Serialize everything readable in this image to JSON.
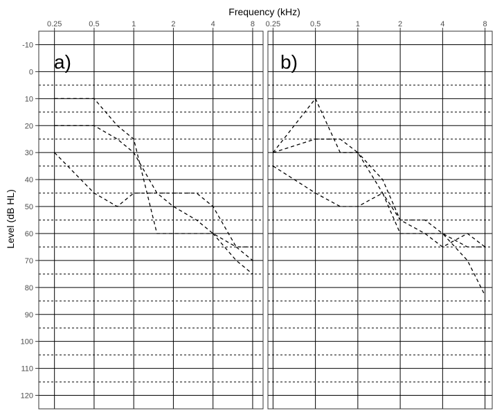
{
  "chart_data": {
    "type": "line",
    "xlabel": "Frequency (kHz)",
    "ylabel": "Level (dB HL)",
    "x_scale": "log",
    "y_reversed": true,
    "ylim": [
      -15,
      125
    ],
    "y_ticks": [
      -10,
      0,
      10,
      20,
      30,
      40,
      50,
      60,
      70,
      80,
      90,
      100,
      110,
      120
    ],
    "y_tick_labels": [
      "-10",
      "0",
      "10",
      "20",
      "30",
      "40",
      "50",
      "60",
      "70",
      "80",
      "90",
      "100",
      "110",
      "120"
    ],
    "x_tick_labels_by_value": {
      "0.25": "0.25",
      "0.5": "0.5",
      "1": "1",
      "2": "2",
      "4": "4",
      "8": "8"
    },
    "major_grid_x": [
      0.25,
      0.5,
      1,
      2,
      4,
      8
    ],
    "minor_grid_x": [
      0.75,
      1.5,
      3,
      6
    ],
    "grid": true,
    "line_color": "#000000",
    "panels": [
      {
        "label": "a)",
        "x_ticks": [
          0.25,
          0.5,
          1,
          2,
          4,
          8
        ],
        "xlim": [
          0.19,
          9.6
        ],
        "series": [
          {
            "x": [
              0.25,
              0.5,
              0.75,
              1.0,
              1.2,
              1.5,
              2,
              3,
              4,
              6,
              8
            ],
            "y": [
              30,
              45,
              50,
              45,
              45,
              45,
              45,
              45,
              50,
              65,
              65
            ]
          },
          {
            "x": [
              0.25,
              0.5,
              0.75,
              1.0,
              1.5,
              2,
              3,
              4,
              6,
              8
            ],
            "y": [
              10,
              10,
              20,
              25,
              60,
              60,
              60,
              60,
              70,
              75
            ]
          },
          {
            "x": [
              0.25,
              0.5,
              0.75,
              1.0,
              1.5,
              2,
              3,
              4,
              6,
              8
            ],
            "y": [
              20,
              20,
              25,
              30,
              45,
              50,
              55,
              60,
              65,
              70
            ]
          }
        ]
      },
      {
        "label": "b)",
        "x_ticks": [
          0.25,
          0.5,
          1,
          2,
          4,
          8
        ],
        "x_tick_positions": [
          0.25,
          0.5,
          1,
          2,
          4,
          8
        ],
        "xlim": [
          0.23,
          9.0
        ],
        "series": [
          {
            "x": [
              0.25,
              0.5,
              0.75,
              1.0,
              1.5,
              2,
              3,
              4,
              6,
              8
            ],
            "y": [
              30,
              10,
              30,
              30,
              40,
              55,
              55,
              60,
              65,
              65
            ]
          },
          {
            "x": [
              0.25,
              0.5,
              0.75,
              1.0,
              1.5,
              2,
              3,
              4,
              6,
              8
            ],
            "y": [
              35,
              45,
              50,
              50,
              45,
              60,
              60,
              60,
              70,
              83
            ]
          },
          {
            "x": [
              0.25,
              0.5,
              0.75,
              1.0,
              1.5,
              2,
              3,
              4,
              6,
              8
            ],
            "y": [
              30,
              25,
              25,
              30,
              45,
              55,
              60,
              65,
              60,
              65
            ]
          }
        ]
      }
    ]
  }
}
